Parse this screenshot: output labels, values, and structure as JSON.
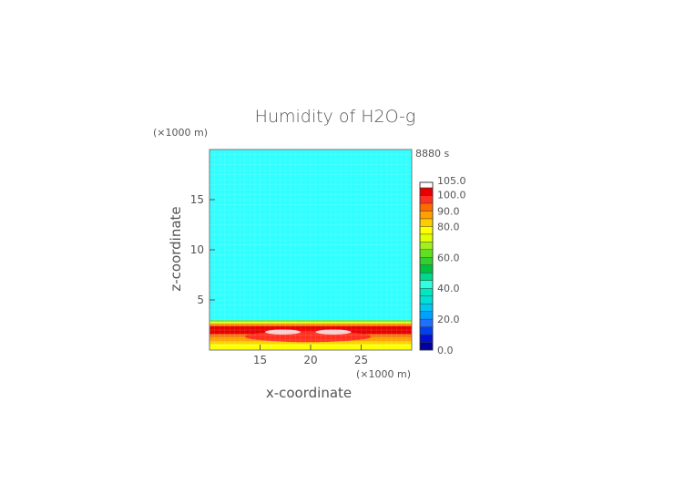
{
  "chart_data": {
    "type": "heatmap",
    "title": "Humidity of H2O-g",
    "time_label": "8880 s",
    "xlabel": "x-coordinate",
    "ylabel": "z-coordinate",
    "x_unit": "(×1000 m)",
    "y_unit": "(×1000 m)",
    "xlim": [
      10,
      30
    ],
    "ylim": [
      0,
      20
    ],
    "x_ticks": [
      "15",
      "20",
      "25"
    ],
    "x_tick_values": [
      15,
      20,
      25
    ],
    "y_ticks": [
      "5",
      "10",
      "15"
    ],
    "y_tick_values": [
      5,
      10,
      15
    ],
    "colorbar": {
      "range": [
        0.0,
        105.0
      ],
      "labels": [
        "105.0",
        "100.0",
        "90.0",
        "80.0",
        "60.0",
        "40.0",
        "20.0",
        "0.0"
      ],
      "label_values": [
        105,
        100,
        90,
        80,
        60,
        40,
        20,
        0
      ],
      "bands": [
        {
          "from": 0,
          "to": 5,
          "color": "#0000a0"
        },
        {
          "from": 5,
          "to": 10,
          "color": "#0010d0"
        },
        {
          "from": 10,
          "to": 15,
          "color": "#0040f0"
        },
        {
          "from": 15,
          "to": 20,
          "color": "#2070ff"
        },
        {
          "from": 20,
          "to": 25,
          "color": "#00a0ff"
        },
        {
          "from": 25,
          "to": 30,
          "color": "#00c8f0"
        },
        {
          "from": 30,
          "to": 35,
          "color": "#00e0d8"
        },
        {
          "from": 35,
          "to": 40,
          "color": "#00e8c0"
        },
        {
          "from": 40,
          "to": 45,
          "color": "#30ffe0"
        },
        {
          "from": 45,
          "to": 50,
          "color": "#00d890"
        },
        {
          "from": 50,
          "to": 55,
          "color": "#00c040"
        },
        {
          "from": 55,
          "to": 60,
          "color": "#30d030"
        },
        {
          "from": 60,
          "to": 65,
          "color": "#60e020"
        },
        {
          "from": 65,
          "to": 70,
          "color": "#a0f020"
        },
        {
          "from": 70,
          "to": 75,
          "color": "#e0ff00"
        },
        {
          "from": 75,
          "to": 80,
          "color": "#ffff00"
        },
        {
          "from": 80,
          "to": 85,
          "color": "#ffcc00"
        },
        {
          "from": 85,
          "to": 90,
          "color": "#ffa000"
        },
        {
          "from": 90,
          "to": 95,
          "color": "#ff6a00"
        },
        {
          "from": 95,
          "to": 100,
          "color": "#ff3020"
        },
        {
          "from": 100,
          "to": 105,
          "color": "#e80000"
        }
      ],
      "top_band_color": "#ffffff"
    },
    "field": {
      "background_value": 43,
      "background_color": "#30ffff",
      "layers": [
        {
          "z_from": 0.0,
          "z_to": 0.6,
          "value": 76,
          "color": "#ffff00"
        },
        {
          "z_from": 0.6,
          "z_to": 0.9,
          "value": 85,
          "color": "#ffd200"
        },
        {
          "z_from": 0.9,
          "z_to": 1.3,
          "value": 90,
          "color": "#ffa000"
        },
        {
          "z_from": 1.3,
          "z_to": 1.6,
          "value": 95,
          "color": "#ff7000"
        },
        {
          "z_from": 1.6,
          "z_to": 2.4,
          "value": 101,
          "color": "#e80000"
        },
        {
          "z_from": 2.4,
          "z_to": 2.65,
          "value": 92,
          "color": "#ff8a00"
        },
        {
          "z_from": 2.65,
          "z_to": 2.85,
          "value": 80,
          "color": "#e0ff20"
        },
        {
          "z_from": 2.85,
          "z_to": 3.0,
          "value": 60,
          "color": "#60e060"
        }
      ],
      "features": [
        {
          "x_from": 13.5,
          "x_to": 26.0,
          "z_from": 0.8,
          "z_to": 1.9,
          "value": 99,
          "color": "#ff3020"
        },
        {
          "x_from": 15.5,
          "x_to": 19.0,
          "z_from": 1.55,
          "z_to": 2.05,
          "value": 104,
          "color": "#f8d0d0"
        },
        {
          "x_from": 20.5,
          "x_to": 24.0,
          "z_from": 1.55,
          "z_to": 2.05,
          "value": 104,
          "color": "#f8d0d0"
        }
      ]
    }
  }
}
